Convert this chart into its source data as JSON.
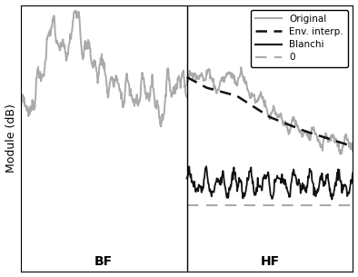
{
  "ylabel": "Module (dB)",
  "xlabel_bf": "BF",
  "xlabel_hf": "HF",
  "legend_entries": [
    "Original",
    "Env. interp.",
    "Blanchi",
    "0"
  ],
  "bf_color": "#aaaaaa",
  "hf_original_color": "#aaaaaa",
  "env_color": "#111111",
  "blanchi_color": "#111111",
  "zero_color": "#aaaaaa",
  "ylim_lo": -5.5,
  "ylim_hi": 4.5
}
